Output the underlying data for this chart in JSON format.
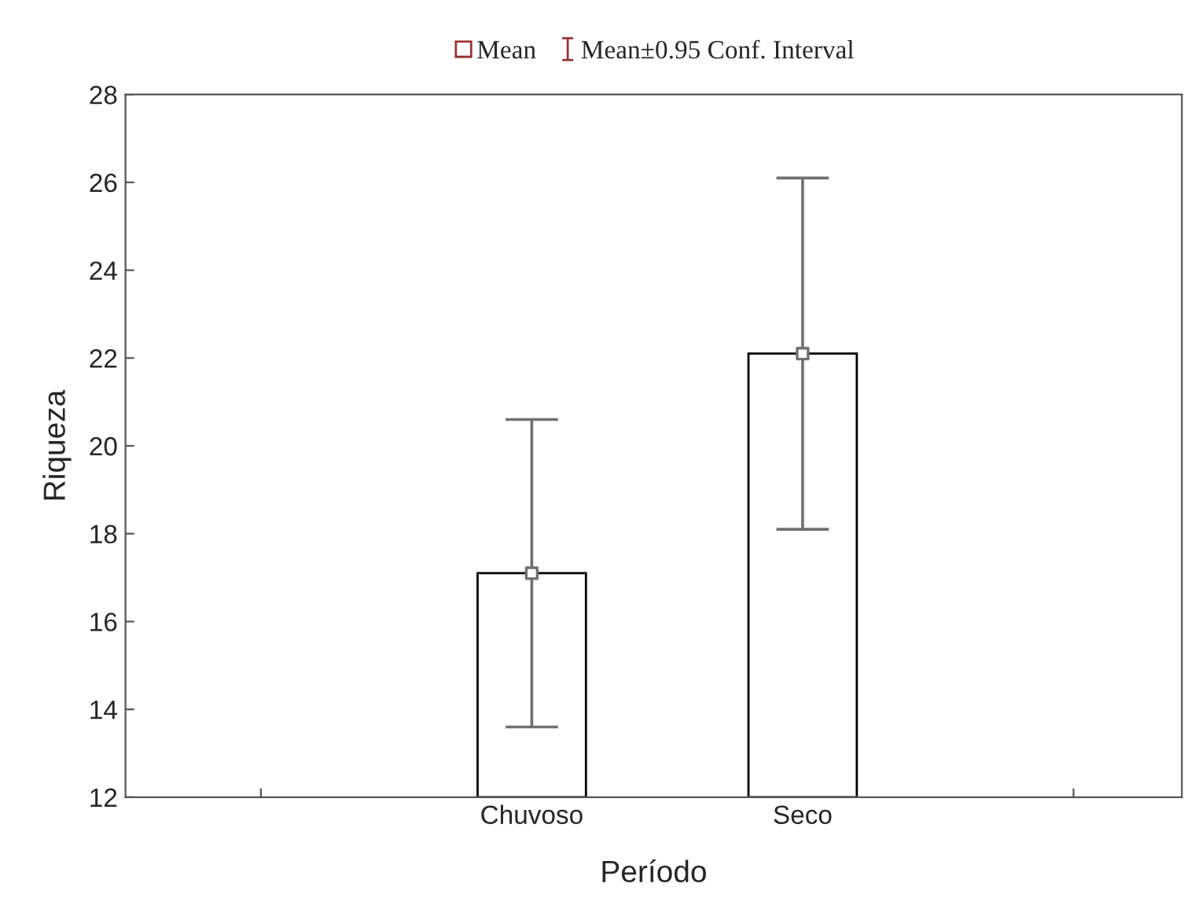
{
  "chart_data": {
    "type": "bar",
    "xlabel": "Período",
    "ylabel": "Riqueza",
    "categories": [
      null,
      "Chuvoso",
      "Seco",
      null
    ],
    "series": [
      {
        "color": "#ffffff",
        "values": [
          null,
          17.1,
          22.1,
          null
        ],
        "errors": [
          null,
          [
            13.6,
            20.6
          ],
          [
            18.1,
            26.1
          ],
          null
        ]
      },
      {
        "type": "scatter",
        "name": "Mean",
        "color": "#707070",
        "values": [
          null,
          17.1,
          22.1,
          null
        ]
      }
    ],
    "annotations": [
      "Mean±0.95 Conf. Interval"
    ],
    "ylim": [
      12,
      28
    ],
    "yticks": [
      12,
      14,
      16,
      18,
      20,
      22,
      24,
      26,
      28
    ],
    "marker": "square",
    "legend": "top",
    "grid": false
  }
}
